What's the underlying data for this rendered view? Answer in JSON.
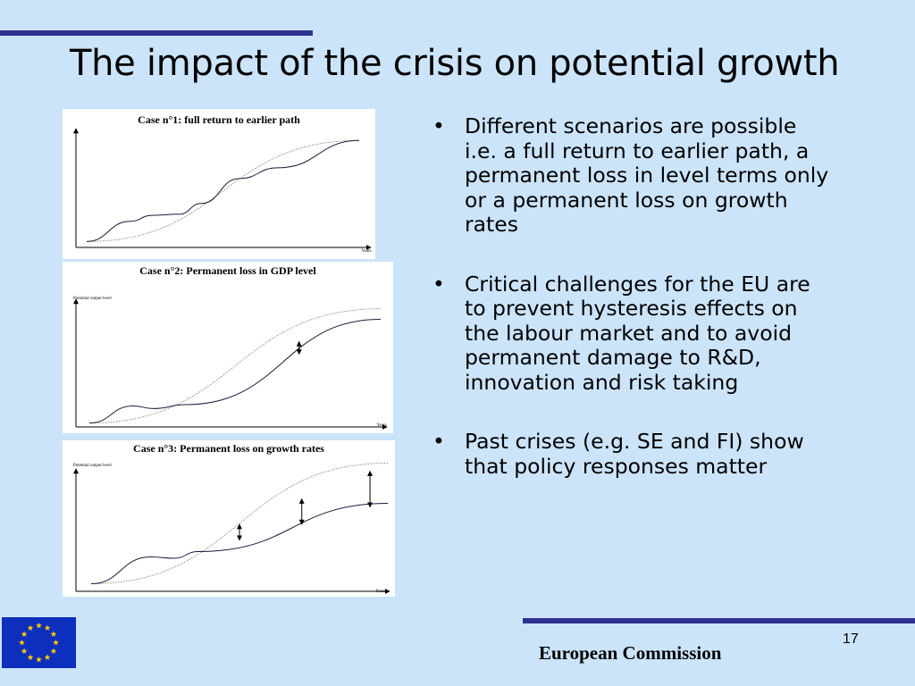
{
  "slide": {
    "title": "The impact of the crisis on potential growth",
    "bullets": [
      "Different scenarios are possible i.e. a full return to earlier path, a permanent loss in level terms only or a permanent loss on growth rates",
      "Critical challenges for the EU are to prevent hysteresis effects on the labour market and to avoid permanent damage to R&D, innovation and risk taking",
      "Past crises (e.g. SE and FI) show that policy responses matter"
    ],
    "footer": "European Commission",
    "page_number": "17"
  },
  "colors": {
    "background": "#cce4fa",
    "rule": "#2e3192",
    "flag_blue": "#0d2fbd",
    "flag_star": "#ffcc00"
  },
  "icons": {
    "bullet": "•",
    "logo": "eu-flag-icon"
  },
  "chart_data": [
    {
      "type": "line",
      "title": "Case n°1: full return to earlier path",
      "xlabel": "Years",
      "ylabel": "",
      "series": [
        {
          "style": "dotted",
          "x": [
            0,
            1
          ],
          "y": [
            0.05,
            0.9
          ]
        },
        {
          "style": "solid",
          "x": [
            0,
            0.16,
            0.24,
            0.34,
            0.42,
            0.56,
            0.7,
            1
          ],
          "y": [
            0.05,
            0.22,
            0.27,
            0.28,
            0.37,
            0.58,
            0.67,
            0.9
          ]
        }
      ]
    },
    {
      "type": "line",
      "title": "Case n°2: Permanent loss in GDP level",
      "xlabel": "Years",
      "ylabel": "Potential output level",
      "series": [
        {
          "style": "dotted",
          "x": [
            0,
            1
          ],
          "y": [
            0.03,
            0.9
          ]
        },
        {
          "style": "solid",
          "x": [
            0,
            0.15,
            0.22,
            0.33,
            1
          ],
          "y": [
            0.03,
            0.16,
            0.14,
            0.17,
            0.82
          ]
        }
      ],
      "annotations": [
        {
          "type": "double-arrow",
          "x": 0.72
        }
      ]
    },
    {
      "type": "line",
      "title": "Case n°3: Permanent loss on growth rates",
      "xlabel": "Years",
      "ylabel": "Potential output level",
      "series": [
        {
          "style": "dotted",
          "x": [
            0,
            1
          ],
          "y": [
            0.05,
            0.95
          ]
        },
        {
          "style": "solid",
          "x": [
            0,
            0.2,
            0.28,
            0.36,
            1
          ],
          "y": [
            0.05,
            0.25,
            0.24,
            0.29,
            0.65
          ]
        }
      ],
      "annotations": [
        {
          "type": "double-arrow",
          "x": 0.5
        },
        {
          "type": "double-arrow",
          "x": 0.71
        },
        {
          "type": "double-arrow",
          "x": 0.94
        }
      ]
    }
  ]
}
